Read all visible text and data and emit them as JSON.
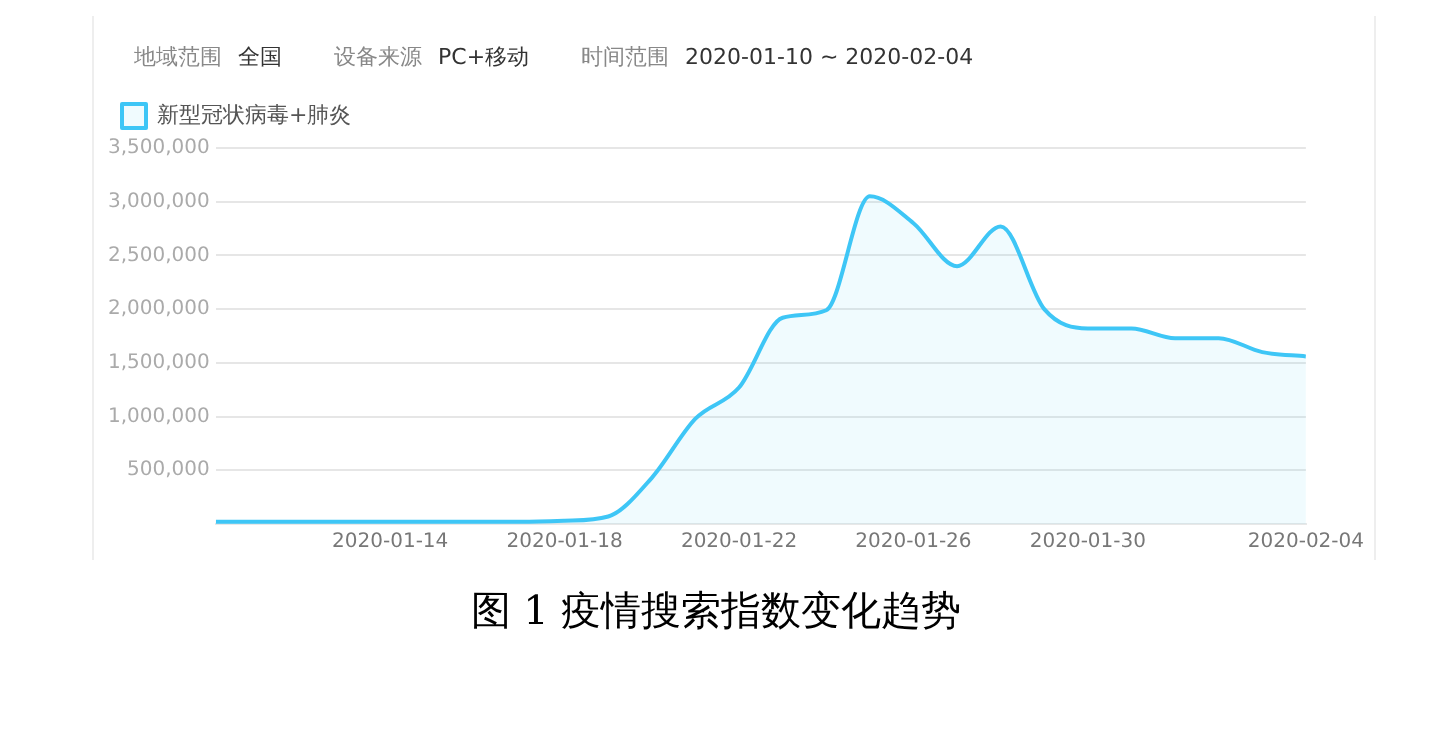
{
  "chart_data": {
    "type": "area",
    "title": "图 1  疫情搜索指数变化趋势",
    "annotations": [
      "地域范围",
      "全国",
      "设备来源",
      "PC+移动",
      "时间范围",
      "2020-01-10 ~ 2020-02-04"
    ],
    "x": [
      "2020-01-10",
      "2020-01-11",
      "2020-01-12",
      "2020-01-13",
      "2020-01-14",
      "2020-01-15",
      "2020-01-16",
      "2020-01-17",
      "2020-01-18",
      "2020-01-19",
      "2020-01-20",
      "2020-01-21",
      "2020-01-22",
      "2020-01-23",
      "2020-01-24",
      "2020-01-25",
      "2020-01-26",
      "2020-01-27",
      "2020-01-28",
      "2020-01-29",
      "2020-01-30",
      "2020-01-31",
      "2020-02-01",
      "2020-02-02",
      "2020-02-03",
      "2020-02-04"
    ],
    "series": [
      {
        "name": "新型冠状病毒+肺炎",
        "color": "#3ec6f6",
        "values": [
          20000,
          20000,
          20000,
          20000,
          20000,
          20000,
          20000,
          20000,
          30000,
          70000,
          430000,
          980000,
          1270000,
          1920000,
          1990000,
          3050000,
          2800000,
          2400000,
          2770000,
          2000000,
          1820000,
          1820000,
          1730000,
          1730000,
          1600000,
          1560000
        ]
      }
    ],
    "xlim": [
      "2020-01-10",
      "2020-02-04"
    ],
    "xticks": [
      "2020-01-14",
      "2020-01-18",
      "2020-01-22",
      "2020-01-26",
      "2020-01-30",
      "2020-02-04"
    ],
    "ylim": [
      0,
      3500000
    ],
    "yticks": [
      {
        "value": 0,
        "label": null
      },
      {
        "value": 500000,
        "label": "500,000"
      },
      {
        "value": 1000000,
        "label": "1,000,000"
      },
      {
        "value": 1500000,
        "label": "1,500,000"
      },
      {
        "value": 2000000,
        "label": "2,000,000"
      },
      {
        "value": 2500000,
        "label": "2,500,000"
      },
      {
        "value": 3000000,
        "label": "3,000,000"
      },
      {
        "value": 3500000,
        "label": "3,500,000"
      }
    ],
    "grid": "y",
    "legend": "top left",
    "marker": "none",
    "line_style": "solid"
  }
}
